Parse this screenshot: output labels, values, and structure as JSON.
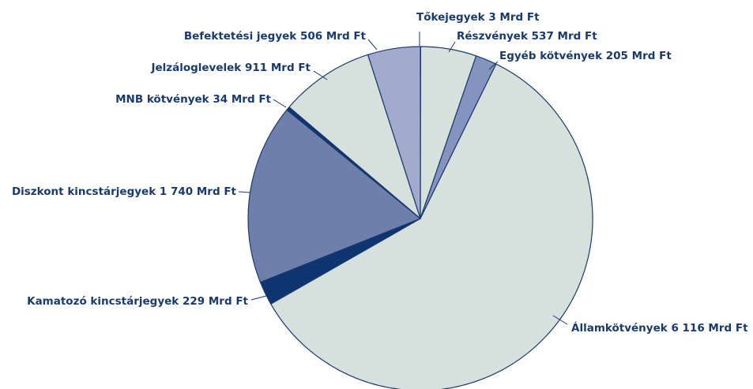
{
  "chart_data": {
    "type": "pie",
    "categories": [
      "Tőkejegyek",
      "Részvények",
      "Egyéb kötvények",
      "Államkötvények",
      "Kamatozó kincstárjegyek",
      "Diszkont kincstárjegyek",
      "MNB kötvények",
      "Jelzáloglevelek",
      "Befektetési jegyek"
    ],
    "values": [
      3,
      537,
      205,
      6116,
      229,
      1740,
      34,
      911,
      506
    ],
    "value_labels": [
      "3 Mrd Ft",
      "537 Mrd Ft",
      "205 Mrd Ft",
      "6 116 Mrd Ft",
      "229 Mrd Ft",
      "1 740 Mrd Ft",
      "34 Mrd Ft",
      "911 Mrd Ft",
      "506 Mrd Ft"
    ],
    "colors": [
      "#d6e0dc",
      "#d6e0dc",
      "#8593bf",
      "#d6e0dc",
      "#0f3570",
      "#6e7fac",
      "#0f3570",
      "#d6e0dc",
      "#a2abcd"
    ]
  }
}
